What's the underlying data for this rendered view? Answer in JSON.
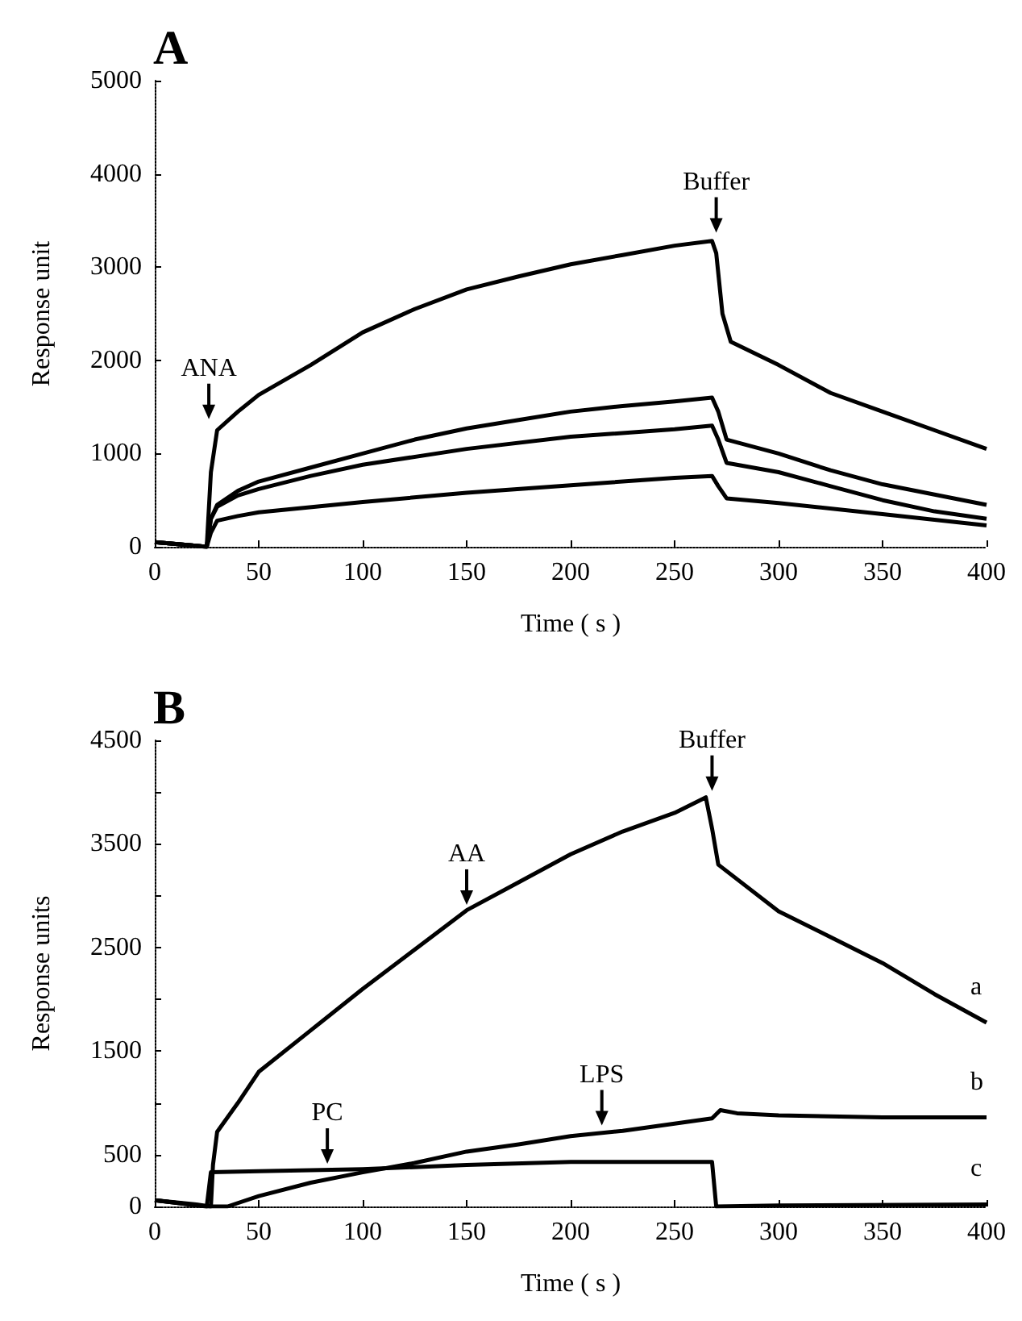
{
  "chart_data": [
    {
      "type": "line",
      "title": "A",
      "xlabel": "Time ( s )",
      "ylabel": "Response unit",
      "xlim": [
        0,
        400
      ],
      "xticks": [
        0,
        50,
        100,
        150,
        200,
        250,
        300,
        350,
        400
      ],
      "ylim": [
        0,
        5000
      ],
      "yticks": [
        0,
        1000,
        2000,
        3000,
        4000,
        5000
      ],
      "grid": false,
      "legend": false,
      "marker": "none",
      "line_style": "solid",
      "annotations": [
        {
          "text": "ANA",
          "x": 26,
          "y": 1300
        },
        {
          "text": "Buffer",
          "x": 270,
          "y": 3300
        }
      ],
      "series": [
        {
          "color": "#000000",
          "x": [
            0,
            20,
            25,
            27,
            30,
            40,
            50,
            75,
            100,
            125,
            150,
            175,
            200,
            225,
            250,
            268,
            270,
            273,
            277,
            300,
            325,
            350,
            375,
            400
          ],
          "values": [
            50,
            10,
            0,
            800,
            1250,
            1450,
            1630,
            1950,
            2300,
            2550,
            2760,
            2900,
            3030,
            3130,
            3230,
            3280,
            3150,
            2500,
            2200,
            1950,
            1650,
            1450,
            1250,
            1050
          ]
        },
        {
          "color": "#000000",
          "x": [
            0,
            20,
            25,
            27,
            30,
            40,
            50,
            75,
            100,
            125,
            150,
            175,
            200,
            225,
            250,
            268,
            271,
            275,
            300,
            325,
            350,
            375,
            400
          ],
          "values": [
            50,
            10,
            0,
            300,
            450,
            600,
            700,
            850,
            1000,
            1150,
            1270,
            1360,
            1450,
            1510,
            1560,
            1600,
            1450,
            1150,
            1000,
            820,
            670,
            560,
            450
          ]
        },
        {
          "color": "#000000",
          "x": [
            0,
            20,
            25,
            27,
            30,
            40,
            50,
            75,
            100,
            150,
            200,
            250,
            268,
            271,
            275,
            300,
            325,
            350,
            375,
            400
          ],
          "values": [
            50,
            10,
            0,
            300,
            430,
            550,
            620,
            760,
            880,
            1050,
            1180,
            1260,
            1300,
            1150,
            900,
            800,
            650,
            500,
            380,
            300
          ]
        },
        {
          "color": "#000000",
          "x": [
            0,
            20,
            25,
            27,
            30,
            40,
            50,
            100,
            150,
            200,
            250,
            268,
            271,
            275,
            300,
            350,
            400
          ],
          "values": [
            50,
            10,
            0,
            150,
            280,
            330,
            370,
            480,
            580,
            660,
            740,
            760,
            650,
            520,
            470,
            350,
            230
          ]
        }
      ]
    },
    {
      "type": "line",
      "title": "B",
      "xlabel": "Time ( s )",
      "ylabel": "Response units",
      "xlim": [
        0,
        400
      ],
      "xticks": [
        0,
        50,
        100,
        150,
        200,
        250,
        300,
        350,
        400
      ],
      "ylim": [
        0,
        4500
      ],
      "yticks": [
        0,
        500,
        {
          "value": 1000,
          "label": null
        },
        1500,
        {
          "value": 2000,
          "label": null
        },
        2500,
        {
          "value": 3000,
          "label": null
        },
        3500,
        {
          "value": 4000,
          "label": null
        },
        4500
      ],
      "grid": false,
      "legend": false,
      "marker": "none",
      "line_style": "solid",
      "annotations": [
        {
          "text": "Buffer",
          "x": 268,
          "y": 3950
        },
        {
          "text": "AA",
          "x": 150,
          "y": 2850
        },
        {
          "text": "LPS",
          "x": 215,
          "y": 720
        },
        {
          "text": "PC",
          "x": 83,
          "y": 350
        }
      ],
      "series": [
        {
          "name": "a",
          "color": "#000000",
          "x": [
            0,
            20,
            27,
            28,
            30,
            40,
            50,
            75,
            100,
            125,
            150,
            175,
            200,
            225,
            250,
            265,
            268,
            271,
            300,
            325,
            350,
            375,
            400
          ],
          "values": [
            60,
            20,
            0,
            400,
            720,
            1000,
            1300,
            1700,
            2100,
            2480,
            2860,
            3130,
            3400,
            3620,
            3800,
            3950,
            3650,
            3300,
            2850,
            2600,
            2350,
            2050,
            1775
          ]
        },
        {
          "name": "b",
          "color": "#000000",
          "x": [
            0,
            25,
            30,
            35,
            50,
            75,
            100,
            125,
            150,
            175,
            200,
            225,
            250,
            268,
            272,
            280,
            300,
            350,
            400
          ],
          "values": [
            60,
            0,
            0,
            0,
            100,
            230,
            330,
            420,
            530,
            600,
            680,
            730,
            800,
            850,
            930,
            900,
            880,
            860,
            860
          ]
        },
        {
          "name": "c",
          "color": "#000000",
          "x": [
            0,
            25,
            27,
            50,
            100,
            150,
            200,
            250,
            268,
            270,
            300,
            400
          ],
          "values": [
            60,
            0,
            330,
            340,
            360,
            400,
            430,
            430,
            430,
            0,
            10,
            20
          ]
        }
      ]
    }
  ]
}
